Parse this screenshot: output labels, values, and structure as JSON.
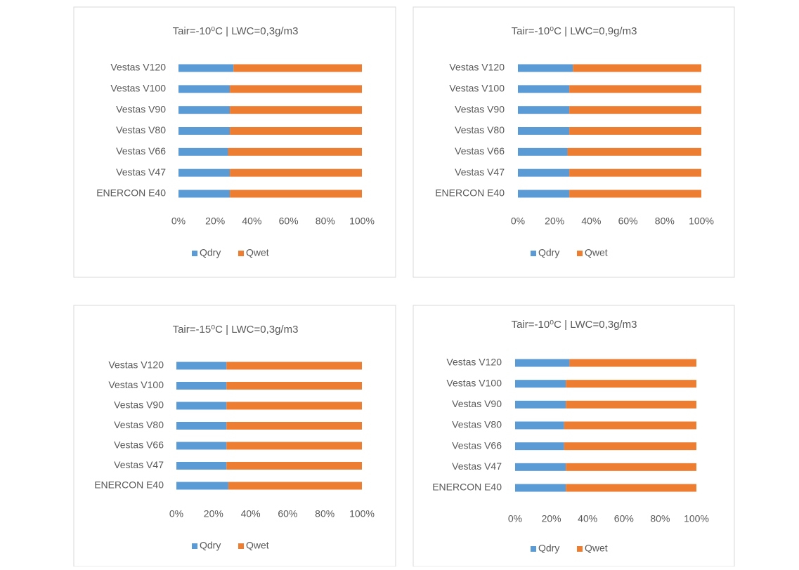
{
  "chart_data": [
    {
      "type": "bar",
      "horizontal": true,
      "stacked": true,
      "title": "Tair=-10⁰C | LWC=0,3g/m3",
      "categories": [
        "Vestas V120",
        "Vestas V100",
        "Vestas V90",
        "Vestas V80",
        "Vestas V66",
        "Vestas V47",
        "ENERCON E40"
      ],
      "series": [
        {
          "name": "Qdry",
          "color": "#5b9bd5",
          "values": [
            30,
            28,
            28,
            28,
            27,
            28,
            28
          ]
        },
        {
          "name": "Qwet",
          "color": "#ed7d31",
          "values": [
            70,
            72,
            72,
            72,
            73,
            72,
            72
          ]
        }
      ],
      "xlim": [
        0,
        100
      ],
      "xticks": [
        {
          "value": 0,
          "label": "0%"
        },
        {
          "value": 20,
          "label": "20%"
        },
        {
          "value": 40,
          "label": "40%"
        },
        {
          "value": 60,
          "label": "60%"
        },
        {
          "value": 80,
          "label": "80%"
        },
        {
          "value": 100,
          "label": "100%"
        }
      ],
      "legend": "bottom"
    },
    {
      "type": "bar",
      "horizontal": true,
      "stacked": true,
      "title": "Tair=-10⁰C | LWC=0,9g/m3",
      "categories": [
        "Vestas V120",
        "Vestas V100",
        "Vestas V90",
        "Vestas V80",
        "Vestas V66",
        "Vestas V47",
        "ENERCON E40"
      ],
      "series": [
        {
          "name": "Qdry",
          "color": "#5b9bd5",
          "values": [
            30,
            28,
            28,
            28,
            27,
            28,
            28
          ]
        },
        {
          "name": "Qwet",
          "color": "#ed7d31",
          "values": [
            70,
            72,
            72,
            72,
            73,
            72,
            72
          ]
        }
      ],
      "xlim": [
        0,
        100
      ],
      "xticks": [
        {
          "value": 0,
          "label": "0%"
        },
        {
          "value": 20,
          "label": "20%"
        },
        {
          "value": 40,
          "label": "40%"
        },
        {
          "value": 60,
          "label": "60%"
        },
        {
          "value": 80,
          "label": "80%"
        },
        {
          "value": 100,
          "label": "100%"
        }
      ],
      "legend": "bottom"
    },
    {
      "type": "bar",
      "horizontal": true,
      "stacked": true,
      "title": "Tair=-15⁰C | LWC=0,3g/m3",
      "categories": [
        "Vestas V120",
        "Vestas V100",
        "Vestas V90",
        "Vestas V80",
        "Vestas V66",
        "Vestas V47",
        "ENERCON E40"
      ],
      "series": [
        {
          "name": "Qdry",
          "color": "#5b9bd5",
          "values": [
            27,
            27,
            27,
            27,
            27,
            27,
            28
          ]
        },
        {
          "name": "Qwet",
          "color": "#ed7d31",
          "values": [
            73,
            73,
            73,
            73,
            73,
            73,
            72
          ]
        }
      ],
      "xlim": [
        0,
        100
      ],
      "xticks": [
        {
          "value": 0,
          "label": "0%"
        },
        {
          "value": 20,
          "label": "20%"
        },
        {
          "value": 40,
          "label": "40%"
        },
        {
          "value": 60,
          "label": "60%"
        },
        {
          "value": 80,
          "label": "80%"
        },
        {
          "value": 100,
          "label": "100%"
        }
      ],
      "legend": "bottom"
    },
    {
      "type": "bar",
      "horizontal": true,
      "stacked": true,
      "title": "Tair=-10⁰C | LWC=0,3g/m3",
      "categories": [
        "Vestas V120",
        "Vestas V100",
        "Vestas V90",
        "Vestas V80",
        "Vestas V66",
        "Vestas V47",
        "ENERCON E40"
      ],
      "series": [
        {
          "name": "Qdry",
          "color": "#5b9bd5",
          "values": [
            30,
            28,
            28,
            27,
            27,
            28,
            28
          ]
        },
        {
          "name": "Qwet",
          "color": "#ed7d31",
          "values": [
            70,
            72,
            72,
            73,
            73,
            72,
            72
          ]
        }
      ],
      "xlim": [
        0,
        100
      ],
      "xticks": [
        {
          "value": 0,
          "label": "0%"
        },
        {
          "value": 20,
          "label": "20%"
        },
        {
          "value": 40,
          "label": "40%"
        },
        {
          "value": 60,
          "label": "60%"
        },
        {
          "value": 80,
          "label": "80%"
        },
        {
          "value": 100,
          "label": "100%"
        }
      ],
      "legend": "bottom"
    }
  ]
}
